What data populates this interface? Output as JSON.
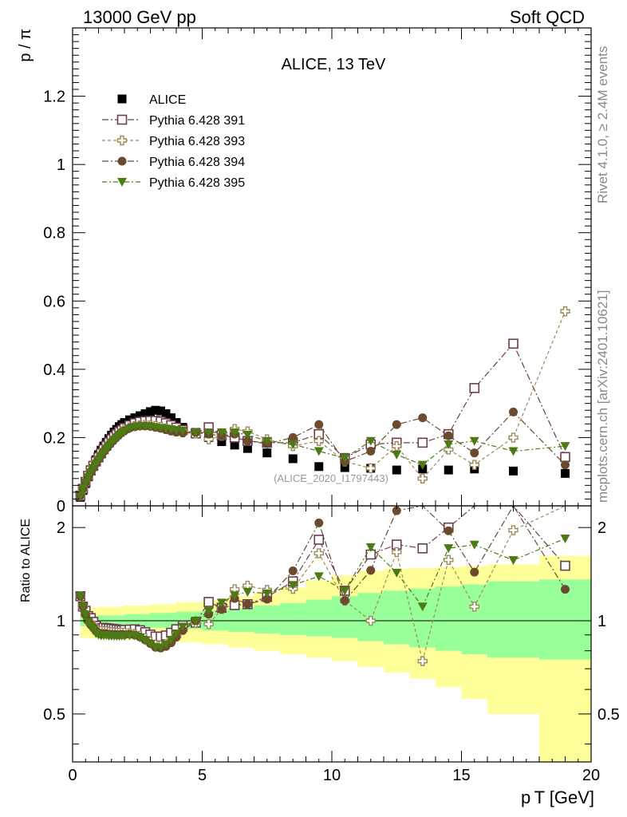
{
  "header": {
    "left": "13000 GeV pp",
    "right": "Soft QCD"
  },
  "side_text": {
    "rivet": "Rivet 4.1.0, ≥ 2.4M events",
    "mcplots": "mcplots.cern.ch [arXiv:2401.10621]"
  },
  "colors": {
    "alice": "#000000",
    "p391": "#6b3d4e",
    "p393": "#9c8a5a",
    "p394": "#6b4a2e",
    "p395": "#4d7a14",
    "band_outer": "#ffff99",
    "band_inner": "#99ff99"
  },
  "chart_data": [
    {
      "type": "scatter",
      "title": "ALICE, 13 TeV",
      "ylabel": "p / π",
      "xlim": [
        0,
        20
      ],
      "ylim": [
        0,
        1.4
      ],
      "yticks": [
        "0",
        "0.2",
        "0.4",
        "0.6",
        "0.8",
        "1",
        "1.2"
      ],
      "watermark": "(ALICE_2020_I1797443)",
      "x": [
        0.3,
        0.4,
        0.5,
        0.6,
        0.7,
        0.8,
        0.9,
        1.0,
        1.1,
        1.2,
        1.3,
        1.4,
        1.5,
        1.6,
        1.7,
        1.8,
        1.9,
        2.0,
        2.2,
        2.4,
        2.6,
        2.8,
        3.0,
        3.2,
        3.4,
        3.6,
        3.8,
        4.0,
        4.25,
        4.75,
        5.25,
        5.75,
        6.25,
        6.75,
        7.5,
        8.5,
        9.5,
        10.5,
        11.5,
        12.5,
        13.5,
        14.5,
        15.5,
        17.0,
        19.0
      ],
      "series": [
        {
          "name": "ALICE",
          "marker": "square-filled",
          "values": [
            0.025,
            0.045,
            0.065,
            0.085,
            0.102,
            0.118,
            0.135,
            0.15,
            0.163,
            0.175,
            0.186,
            0.197,
            0.207,
            0.216,
            0.224,
            0.232,
            0.238,
            0.244,
            0.252,
            0.258,
            0.264,
            0.27,
            0.276,
            0.28,
            0.278,
            0.27,
            0.258,
            0.244,
            0.23,
            0.215,
            0.2,
            0.188,
            0.178,
            0.168,
            0.155,
            0.138,
            0.115,
            0.112,
            0.11,
            0.105,
            0.108,
            0.105,
            0.108,
            0.102,
            0.095
          ]
        },
        {
          "name": "Pythia 6.428 391",
          "marker": "square-open",
          "values": [
            0.03,
            0.05,
            0.07,
            0.088,
            0.104,
            0.117,
            0.13,
            0.142,
            0.154,
            0.166,
            0.176,
            0.186,
            0.195,
            0.203,
            0.21,
            0.217,
            0.222,
            0.228,
            0.236,
            0.242,
            0.246,
            0.248,
            0.249,
            0.249,
            0.247,
            0.242,
            0.236,
            0.229,
            0.222,
            0.212,
            0.23,
            0.207,
            0.2,
            0.19,
            0.185,
            0.185,
            0.21,
            0.14,
            0.18,
            0.185,
            0.185,
            0.21,
            0.345,
            0.475,
            0.143
          ]
        },
        {
          "name": "Pythia 6.428 393",
          "marker": "cross-open",
          "values": [
            0.03,
            0.05,
            0.068,
            0.085,
            0.1,
            0.114,
            0.127,
            0.139,
            0.151,
            0.162,
            0.172,
            0.181,
            0.19,
            0.198,
            0.205,
            0.212,
            0.218,
            0.223,
            0.23,
            0.234,
            0.236,
            0.237,
            0.236,
            0.234,
            0.231,
            0.227,
            0.222,
            0.218,
            0.215,
            0.212,
            0.195,
            0.205,
            0.225,
            0.218,
            0.195,
            0.175,
            0.19,
            0.13,
            0.11,
            0.175,
            0.08,
            0.165,
            0.12,
            0.2,
            0.57
          ]
        },
        {
          "name": "Pythia 6.428 394",
          "marker": "circle-filled",
          "values": [
            0.03,
            0.05,
            0.068,
            0.085,
            0.099,
            0.112,
            0.125,
            0.137,
            0.148,
            0.159,
            0.169,
            0.178,
            0.187,
            0.195,
            0.202,
            0.209,
            0.215,
            0.22,
            0.228,
            0.232,
            0.234,
            0.234,
            0.233,
            0.23,
            0.227,
            0.223,
            0.219,
            0.216,
            0.214,
            0.215,
            0.21,
            0.205,
            0.21,
            0.19,
            0.182,
            0.2,
            0.238,
            0.13,
            0.16,
            0.238,
            0.258,
            0.205,
            0.155,
            0.275,
            0.12
          ]
        },
        {
          "name": "Pythia 6.428 395",
          "marker": "triangle-down-filled",
          "values": [
            0.03,
            0.05,
            0.068,
            0.084,
            0.098,
            0.111,
            0.123,
            0.135,
            0.146,
            0.157,
            0.167,
            0.176,
            0.185,
            0.193,
            0.2,
            0.207,
            0.213,
            0.218,
            0.226,
            0.231,
            0.233,
            0.233,
            0.232,
            0.23,
            0.228,
            0.226,
            0.224,
            0.222,
            0.22,
            0.215,
            0.215,
            0.215,
            0.215,
            0.208,
            0.19,
            0.18,
            0.16,
            0.14,
            0.19,
            0.15,
            0.12,
            0.18,
            0.19,
            0.16,
            0.175
          ]
        }
      ]
    },
    {
      "type": "scatter",
      "title": "Ratio to ALICE",
      "xlabel": "p T [GeV]",
      "xlim": [
        0,
        20
      ],
      "ylim": [
        0.35,
        2.35
      ],
      "xticks": [
        "0",
        "5",
        "10",
        "15",
        "20"
      ],
      "yticks": [
        "0.5",
        "1",
        "2"
      ],
      "bands": {
        "x_edges": [
          0.3,
          1.0,
          2.0,
          3.0,
          4.0,
          5.0,
          6.0,
          7.0,
          8.0,
          9.0,
          10.0,
          11.0,
          12.0,
          13.0,
          14.0,
          15.0,
          16.0,
          18.0,
          20.0
        ],
        "outer_lo": [
          0.88,
          0.88,
          0.87,
          0.86,
          0.85,
          0.84,
          0.82,
          0.8,
          0.78,
          0.76,
          0.74,
          0.71,
          0.68,
          0.65,
          0.61,
          0.56,
          0.5,
          0.35
        ],
        "outer_hi": [
          1.1,
          1.11,
          1.12,
          1.13,
          1.15,
          1.17,
          1.2,
          1.23,
          1.28,
          1.35,
          1.4,
          1.45,
          1.47,
          1.48,
          1.49,
          1.5,
          1.52,
          1.62
        ],
        "inner_lo": [
          0.96,
          0.96,
          0.95,
          0.95,
          0.94,
          0.93,
          0.92,
          0.91,
          0.9,
          0.89,
          0.88,
          0.86,
          0.84,
          0.82,
          0.8,
          0.78,
          0.76,
          0.75
        ],
        "inner_hi": [
          1.04,
          1.04,
          1.05,
          1.06,
          1.07,
          1.08,
          1.1,
          1.12,
          1.14,
          1.17,
          1.2,
          1.23,
          1.25,
          1.27,
          1.29,
          1.31,
          1.34,
          1.36
        ]
      }
    }
  ]
}
